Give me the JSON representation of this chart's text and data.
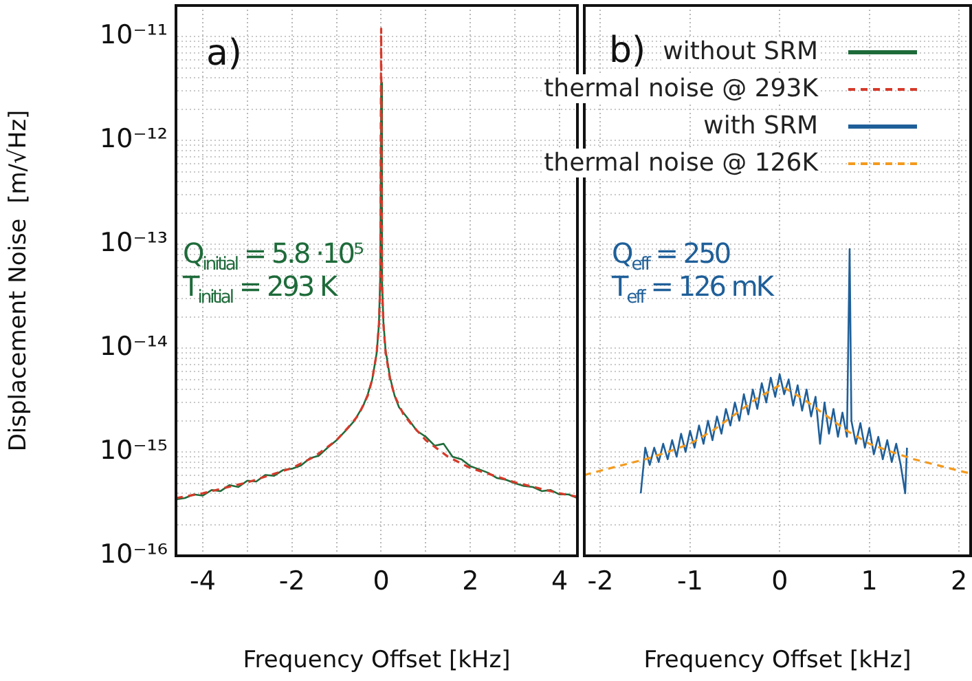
{
  "chart_data": [
    {
      "type": "line",
      "xlabel": "Frequency Offset [kHz]",
      "ylabel": "Displacement Noise  [m/√Hz]",
      "log": "y",
      "grid": true,
      "legend": "top right",
      "xlim": [
        -4.6,
        4.4
      ],
      "xticks": [
        -4,
        {
          "value": -3,
          "label": null
        },
        -2,
        {
          "value": -1,
          "label": null
        },
        0,
        {
          "value": 1,
          "label": null
        },
        2,
        {
          "value": 3,
          "label": null
        },
        4
      ],
      "ylim": [
        1e-16,
        2e-11
      ],
      "yticks": [
        {
          "value": 1e-16,
          "label": "10⁻¹⁶"
        },
        {
          "value": 2e-16,
          "label": null
        },
        {
          "value": 3e-16,
          "label": null
        },
        {
          "value": 4e-16,
          "label": null
        },
        {
          "value": 5e-16,
          "label": null
        },
        {
          "value": 6e-16,
          "label": null
        },
        {
          "value": 7e-16,
          "label": null
        },
        {
          "value": 8e-16,
          "label": null
        },
        {
          "value": 9e-16,
          "label": null
        },
        {
          "value": 1e-15,
          "label": "10⁻¹⁵"
        },
        {
          "value": 2e-15,
          "label": null
        },
        {
          "value": 3e-15,
          "label": null
        },
        {
          "value": 4e-15,
          "label": null
        },
        {
          "value": 5e-15,
          "label": null
        },
        {
          "value": 6e-15,
          "label": null
        },
        {
          "value": 7e-15,
          "label": null
        },
        {
          "value": 8e-15,
          "label": null
        },
        {
          "value": 9e-15,
          "label": null
        },
        {
          "value": 1e-14,
          "label": "10⁻¹⁴"
        },
        {
          "value": 2e-14,
          "label": null
        },
        {
          "value": 3e-14,
          "label": null
        },
        {
          "value": 4e-14,
          "label": null
        },
        {
          "value": 5e-14,
          "label": null
        },
        {
          "value": 6e-14,
          "label": null
        },
        {
          "value": 7e-14,
          "label": null
        },
        {
          "value": 8e-14,
          "label": null
        },
        {
          "value": 9e-14,
          "label": null
        },
        {
          "value": 1e-13,
          "label": "10⁻¹³"
        },
        {
          "value": 2e-13,
          "label": null
        },
        {
          "value": 3e-13,
          "label": null
        },
        {
          "value": 4e-13,
          "label": null
        },
        {
          "value": 5e-13,
          "label": null
        },
        {
          "value": 6e-13,
          "label": null
        },
        {
          "value": 7e-13,
          "label": null
        },
        {
          "value": 8e-13,
          "label": null
        },
        {
          "value": 9e-13,
          "label": null
        },
        {
          "value": 1e-12,
          "label": "10⁻¹²"
        },
        {
          "value": 2e-12,
          "label": null
        },
        {
          "value": 3e-12,
          "label": null
        },
        {
          "value": 4e-12,
          "label": null
        },
        {
          "value": 5e-12,
          "label": null
        },
        {
          "value": 6e-12,
          "label": null
        },
        {
          "value": 7e-12,
          "label": null
        },
        {
          "value": 8e-12,
          "label": null
        },
        {
          "value": 9e-12,
          "label": null
        },
        {
          "value": 1e-11,
          "label": "10⁻¹¹"
        }
      ],
      "annotations": [
        "a)",
        "Q$_{initial}$ = 5.8 ·10⁵",
        "T$_{initial}$ = 293 K"
      ],
      "series": [
        {
          "name": "without SRM",
          "color": "#1e6b3a",
          "line_style": "solid",
          "x": [
            -4.6,
            -4.4,
            -4.2,
            -4,
            -3.8,
            -3.6,
            -3.4,
            -3.2,
            -3,
            -2.8,
            -2.6,
            -2.4,
            -2.2,
            -2,
            -1.8,
            -1.6,
            -1.4,
            -1.2,
            -1,
            -0.8,
            -0.6,
            -0.4,
            -0.3,
            -0.2,
            -0.1,
            -0.05,
            -0.02,
            0,
            0.02,
            0.05,
            0.1,
            0.2,
            0.3,
            0.4,
            0.6,
            0.8,
            1,
            1.2,
            1.4,
            1.6,
            1.8,
            2,
            2.2,
            2.4,
            2.6,
            2.8,
            3,
            3.2,
            3.4,
            3.6,
            3.8,
            4,
            4.2,
            4.4
          ],
          "values": [
            3.5e-16,
            3.6e-16,
            3.9e-16,
            3.8e-16,
            4.3e-16,
            4.2e-16,
            4.8e-16,
            4.6e-16,
            5.3e-16,
            5.2e-16,
            6e-16,
            5.9e-16,
            6.7e-16,
            6.9e-16,
            7.4e-16,
            8.7e-16,
            9.2e-16,
            1.1e-15,
            1.3e-15,
            1.6e-15,
            2e-15,
            2.8e-15,
            3.6e-15,
            5e-15,
            9e-15,
            1.7e-14,
            5e-14,
            3.6e-12,
            4.5e-14,
            1.8e-14,
            9.5e-15,
            5.2e-15,
            3.5e-15,
            2.7e-15,
            2.1e-15,
            1.6e-15,
            1.4e-15,
            1.15e-15,
            1.2e-15,
            9e-16,
            8.5e-16,
            7.3e-16,
            6.8e-16,
            6.3e-16,
            5.6e-16,
            5.4e-16,
            5e-16,
            4.7e-16,
            4.6e-16,
            4.2e-16,
            4.3e-16,
            3.9e-16,
            3.9e-16,
            3.6e-16
          ]
        },
        {
          "name": "thermal noise @ 293K",
          "color": "#d63a2a",
          "line_style": "dashed",
          "x": [
            -4.6,
            -4,
            -3,
            -2,
            -1.5,
            -1,
            -0.7,
            -0.5,
            -0.3,
            -0.2,
            -0.1,
            -0.05,
            -0.02,
            0,
            0.02,
            0.05,
            0.1,
            0.2,
            0.3,
            0.5,
            0.7,
            1,
            1.5,
            2,
            3,
            4,
            4.4
          ],
          "values": [
            3.6e-16,
            4e-16,
            5.1e-16,
            7e-16,
            9e-16,
            1.3e-15,
            1.8e-15,
            2.3e-15,
            3.5e-15,
            5e-15,
            9e-15,
            1.7e-14,
            4e-14,
            1.2e-11,
            4e-14,
            1.7e-14,
            9e-15,
            5e-15,
            3.5e-15,
            2.3e-15,
            1.8e-15,
            1.3e-15,
            9e-16,
            7e-16,
            5.1e-16,
            4e-16,
            3.7e-16
          ]
        }
      ]
    },
    {
      "type": "line",
      "xlabel": "Frequency Offset [kHz]",
      "log": "y",
      "grid": true,
      "legend": "top left",
      "tick_labels": "x",
      "xlim": [
        -2.18,
        2.13
      ],
      "xticks": [
        -2,
        -1,
        0,
        1,
        2
      ],
      "ylim": [
        1e-16,
        2e-11
      ],
      "yticks": [
        {
          "value": 1e-16,
          "label": null
        },
        {
          "value": 2e-16,
          "label": null
        },
        {
          "value": 3e-16,
          "label": null
        },
        {
          "value": 4e-16,
          "label": null
        },
        {
          "value": 5e-16,
          "label": null
        },
        {
          "value": 6e-16,
          "label": null
        },
        {
          "value": 7e-16,
          "label": null
        },
        {
          "value": 8e-16,
          "label": null
        },
        {
          "value": 9e-16,
          "label": null
        },
        {
          "value": 1e-15,
          "label": null
        },
        {
          "value": 2e-15,
          "label": null
        },
        {
          "value": 3e-15,
          "label": null
        },
        {
          "value": 4e-15,
          "label": null
        },
        {
          "value": 5e-15,
          "label": null
        },
        {
          "value": 6e-15,
          "label": null
        },
        {
          "value": 7e-15,
          "label": null
        },
        {
          "value": 8e-15,
          "label": null
        },
        {
          "value": 9e-15,
          "label": null
        },
        {
          "value": 1e-14,
          "label": null
        },
        {
          "value": 2e-14,
          "label": null
        },
        {
          "value": 3e-14,
          "label": null
        },
        {
          "value": 4e-14,
          "label": null
        },
        {
          "value": 5e-14,
          "label": null
        },
        {
          "value": 6e-14,
          "label": null
        },
        {
          "value": 7e-14,
          "label": null
        },
        {
          "value": 8e-14,
          "label": null
        },
        {
          "value": 9e-14,
          "label": null
        },
        {
          "value": 1e-13,
          "label": null
        },
        {
          "value": 2e-13,
          "label": null
        },
        {
          "value": 3e-13,
          "label": null
        },
        {
          "value": 4e-13,
          "label": null
        },
        {
          "value": 5e-13,
          "label": null
        },
        {
          "value": 6e-13,
          "label": null
        },
        {
          "value": 7e-13,
          "label": null
        },
        {
          "value": 8e-13,
          "label": null
        },
        {
          "value": 9e-13,
          "label": null
        },
        {
          "value": 1e-12,
          "label": null
        },
        {
          "value": 2e-12,
          "label": null
        },
        {
          "value": 3e-12,
          "label": null
        },
        {
          "value": 4e-12,
          "label": null
        },
        {
          "value": 5e-12,
          "label": null
        },
        {
          "value": 6e-12,
          "label": null
        },
        {
          "value": 7e-12,
          "label": null
        },
        {
          "value": 8e-12,
          "label": null
        },
        {
          "value": 9e-12,
          "label": null
        },
        {
          "value": 1e-11,
          "label": null
        }
      ],
      "annotations": [
        "b)",
        "Q$_{eff}$ = 250",
        "T$_{eff}$ = 126 mK"
      ],
      "series": [
        {
          "name": "with SRM",
          "color": "#1f5f99",
          "line_style": "solid",
          "x": [
            -1.55,
            -1.5,
            -1.45,
            -1.4,
            -1.35,
            -1.3,
            -1.25,
            -1.2,
            -1.15,
            -1.1,
            -1.05,
            -1,
            -0.95,
            -0.9,
            -0.85,
            -0.8,
            -0.75,
            -0.7,
            -0.65,
            -0.6,
            -0.55,
            -0.5,
            -0.45,
            -0.4,
            -0.35,
            -0.3,
            -0.25,
            -0.2,
            -0.15,
            -0.1,
            -0.05,
            0,
            0.05,
            0.1,
            0.15,
            0.2,
            0.25,
            0.3,
            0.35,
            0.4,
            0.45,
            0.5,
            0.55,
            0.6,
            0.65,
            0.7,
            0.75,
            0.78,
            0.8,
            0.85,
            0.9,
            0.95,
            1,
            1.05,
            1.1,
            1.15,
            1.2,
            1.25,
            1.3,
            1.35,
            1.4,
            1.42
          ],
          "values": [
            4e-16,
            1.1e-15,
            7.5e-16,
            1.1e-15,
            8e-16,
            1.2e-15,
            8.5e-16,
            1.3e-15,
            9e-16,
            1.5e-15,
            1e-15,
            1.6e-15,
            1.1e-15,
            1.8e-15,
            1.2e-15,
            2e-15,
            1.3e-15,
            2.2e-15,
            1.5e-15,
            2.6e-15,
            1.8e-15,
            3e-15,
            2e-15,
            3.6e-15,
            2.3e-15,
            4e-15,
            2.6e-15,
            4.6e-15,
            3e-15,
            5.2e-15,
            3.4e-15,
            5.6e-15,
            3.6e-15,
            5e-15,
            2.8e-15,
            4.4e-15,
            2.5e-15,
            4e-15,
            2.2e-15,
            3.4e-15,
            1.2e-15,
            3e-15,
            1.5e-15,
            2.6e-15,
            1.4e-15,
            2.4e-15,
            1.4e-15,
            9e-14,
            2e-15,
            1.2e-15,
            1.9e-15,
            1.1e-15,
            1.7e-15,
            9.5e-16,
            1.4e-15,
            8.5e-16,
            1.3e-15,
            8e-16,
            1.2e-15,
            7.5e-16,
            4e-16,
            1.1e-15
          ]
        },
        {
          "name": "thermal noise @ 126K",
          "color": "#f39a1e",
          "line_style": "dashed",
          "x": [
            -2.18,
            -2,
            -1.75,
            -1.5,
            -1.25,
            -1,
            -0.75,
            -0.5,
            -0.25,
            0,
            0.25,
            0.5,
            0.75,
            1,
            1.25,
            1.5,
            1.75,
            2,
            2.13
          ],
          "values": [
            6e-16,
            6.6e-16,
            7.5e-16,
            8.5e-16,
            1e-15,
            1.2e-15,
            1.6e-15,
            2.3e-15,
            3.3e-15,
            4.4e-15,
            3.3e-15,
            2.3e-15,
            1.6e-15,
            1.2e-15,
            1e-15,
            8.5e-16,
            7.5e-16,
            6.6e-16,
            6.2e-16
          ]
        }
      ]
    }
  ]
}
